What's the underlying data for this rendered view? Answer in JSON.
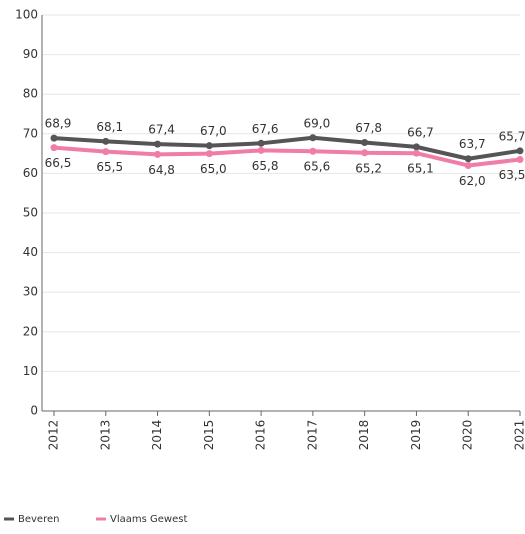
{
  "chart_data": {
    "type": "line",
    "categories": [
      "2012",
      "2013",
      "2014",
      "2015",
      "2016",
      "2017",
      "2018",
      "2019",
      "2020",
      "2021"
    ],
    "series": [
      {
        "name": "Beveren",
        "color": "#555555",
        "values": [
          68.9,
          68.1,
          67.4,
          67.0,
          67.6,
          69.0,
          67.8,
          66.7,
          63.7,
          65.7
        ],
        "value_labels": [
          "68,9",
          "68,1",
          "67,4",
          "67,0",
          "67,6",
          "69,0",
          "67,8",
          "66,7",
          "63,7",
          "65,7"
        ]
      },
      {
        "name": "Vlaams Gewest",
        "color": "#f07ca8",
        "values": [
          66.5,
          65.5,
          64.8,
          65.0,
          65.8,
          65.6,
          65.2,
          65.1,
          62.0,
          63.5
        ],
        "value_labels": [
          "66,5",
          "65,5",
          "64,8",
          "65,0",
          "65,8",
          "65,6",
          "65,2",
          "65,1",
          "62,0",
          "63,5"
        ]
      }
    ],
    "ylim": [
      0,
      100
    ],
    "yticks": [
      0,
      10,
      20,
      30,
      40,
      50,
      60,
      70,
      80,
      90,
      100
    ],
    "grid": true
  }
}
